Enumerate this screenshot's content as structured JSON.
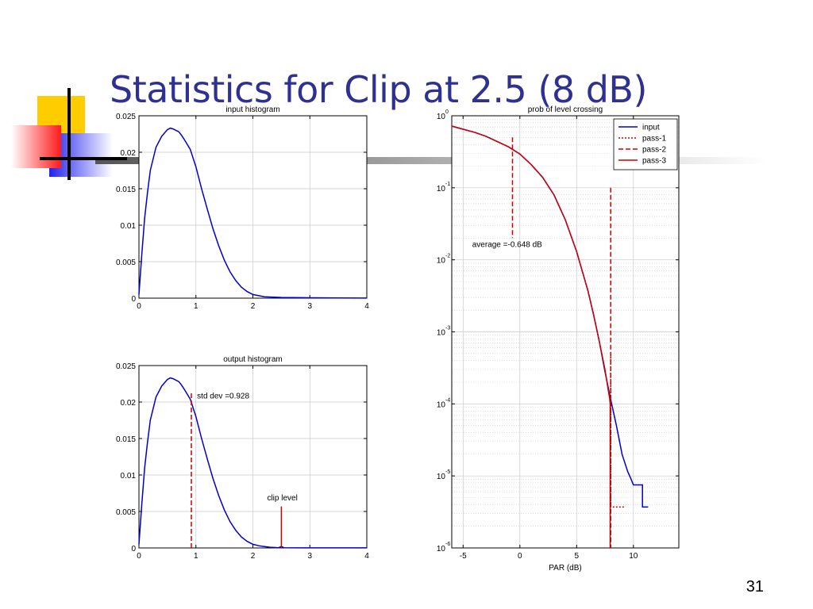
{
  "slide": {
    "title": "Statistics for Clip at 2.5 (8 dB)",
    "page_number": "31"
  },
  "chart_data": [
    {
      "type": "line",
      "title": "input histogram",
      "xlabel": "",
      "ylabel": "",
      "xlim": [
        0,
        4
      ],
      "ylim": [
        0,
        0.025
      ],
      "xticks": [
        0,
        1,
        2,
        3,
        4
      ],
      "yticks": [
        0,
        0.005,
        0.01,
        0.015,
        0.02,
        0.025
      ],
      "xtick_labels": [
        "0",
        "1",
        "2",
        "3",
        "4"
      ],
      "ytick_labels": [
        "0",
        "0.005",
        "0.01",
        "0.015",
        "0.02",
        "0.025"
      ],
      "grid": true,
      "series": [
        {
          "color": "#0000CC",
          "style": "solid",
          "x": [
            0,
            0.05,
            0.1,
            0.15,
            0.2,
            0.3,
            0.4,
            0.5,
            0.55,
            0.6,
            0.65,
            0.7,
            0.75,
            0.8,
            0.9,
            1.0,
            1.1,
            1.2,
            1.3,
            1.4,
            1.5,
            1.6,
            1.7,
            1.8,
            1.9,
            2.0,
            2.2,
            2.5,
            3.0,
            3.5,
            4.0
          ],
          "y": [
            0.0005,
            0.006,
            0.011,
            0.0145,
            0.0175,
            0.0207,
            0.0222,
            0.0231,
            0.0233,
            0.0232,
            0.023,
            0.0228,
            0.0223,
            0.0217,
            0.0204,
            0.018,
            0.015,
            0.0122,
            0.0095,
            0.0072,
            0.0052,
            0.0036,
            0.0024,
            0.0015,
            0.0009,
            0.0005,
            0.0002,
            0.0001,
            5e-05,
            2e-05,
            1e-05
          ]
        }
      ],
      "annotations": []
    },
    {
      "type": "line",
      "title": "output histogram",
      "xlabel": "",
      "ylabel": "",
      "xlim": [
        0,
        4
      ],
      "ylim": [
        0,
        0.025
      ],
      "xticks": [
        0,
        1,
        2,
        3,
        4
      ],
      "yticks": [
        0,
        0.005,
        0.01,
        0.015,
        0.02,
        0.025
      ],
      "xtick_labels": [
        "0",
        "1",
        "2",
        "3",
        "4"
      ],
      "ytick_labels": [
        "0",
        "0.005",
        "0.01",
        "0.015",
        "0.02",
        "0.025"
      ],
      "grid": true,
      "series": [
        {
          "color": "#0000CC",
          "style": "solid",
          "x": [
            0,
            0.05,
            0.1,
            0.15,
            0.2,
            0.3,
            0.4,
            0.5,
            0.55,
            0.6,
            0.65,
            0.7,
            0.75,
            0.8,
            0.9,
            1.0,
            1.1,
            1.2,
            1.3,
            1.4,
            1.5,
            1.6,
            1.7,
            1.8,
            1.9,
            2.0,
            2.1,
            2.2,
            2.3,
            2.4,
            2.45,
            2.5,
            2.55,
            3.0,
            4.0
          ],
          "y": [
            0.0005,
            0.006,
            0.011,
            0.0145,
            0.0175,
            0.0207,
            0.0222,
            0.0231,
            0.0233,
            0.0232,
            0.023,
            0.0228,
            0.0223,
            0.0217,
            0.0204,
            0.018,
            0.015,
            0.0122,
            0.0095,
            0.0072,
            0.0052,
            0.0036,
            0.0024,
            0.0015,
            0.0009,
            0.0005,
            0.0003,
            0.0002,
            0.0001,
            5e-05,
            3e-05,
            0.0002,
            2e-05,
            1e-05,
            1e-05
          ]
        },
        {
          "color": "#CC0000",
          "style": "dashed",
          "x": [
            0.92,
            0.92
          ],
          "y": [
            0,
            0.0215
          ]
        },
        {
          "color": "#CC0000",
          "style": "solid",
          "x": [
            2.5,
            2.5
          ],
          "y": [
            0,
            0.0057
          ]
        }
      ],
      "annotations": [
        {
          "text": "std dev =0.928",
          "x": 1.02,
          "y": 0.0205
        },
        {
          "text": "clip level",
          "x": 2.25,
          "y": 0.0065
        }
      ]
    },
    {
      "type": "line",
      "title": "prob of level crossing",
      "xlabel": "PAR (dB)",
      "ylabel": "",
      "xlim": [
        -6,
        14
      ],
      "ylim": [
        1e-06,
        1
      ],
      "yscale": "log",
      "xticks": [
        -5,
        0,
        5,
        10
      ],
      "xtick_labels": [
        "-5",
        "0",
        "5",
        "10"
      ],
      "yticks": [
        1,
        0.1,
        0.01,
        0.001,
        0.0001,
        1e-05,
        1e-06
      ],
      "ytick_labels": [
        {
          "base": "10",
          "exp": "0"
        },
        {
          "base": "10",
          "exp": "-1"
        },
        {
          "base": "10",
          "exp": "-2"
        },
        {
          "base": "10",
          "exp": "-3"
        },
        {
          "base": "10",
          "exp": "-4"
        },
        {
          "base": "10",
          "exp": "-5"
        },
        {
          "base": "10",
          "exp": "-6"
        }
      ],
      "grid": true,
      "legend": {
        "position": "top-right"
      },
      "series": [
        {
          "name": "input",
          "color": "#0000CC",
          "style": "solid",
          "x": [
            -6,
            -5,
            -4,
            -3,
            -2,
            -1,
            0,
            1,
            2,
            3,
            4,
            5,
            6,
            6.5,
            7,
            7.5,
            8,
            8.5,
            9,
            9.5,
            9.8,
            10,
            10.8,
            10.8,
            11.3
          ],
          "y": [
            0.72,
            0.65,
            0.59,
            0.52,
            0.44,
            0.37,
            0.295,
            0.21,
            0.14,
            0.08,
            0.036,
            0.013,
            0.0037,
            0.0017,
            0.00073,
            0.00028,
            0.000115,
            5e-05,
            2e-05,
            1.15e-05,
            9e-06,
            7.5e-06,
            7.5e-06,
            3.7e-06,
            3.7e-06
          ]
        },
        {
          "name": "pass-1",
          "color": "#CC0000",
          "style": "dotted",
          "x": [
            8.0,
            8.0,
            9.2
          ],
          "y": [
            0.00045,
            3.7e-06,
            3.7e-06
          ]
        },
        {
          "name": "pass-2",
          "color": "#CC0000",
          "style": "dashed",
          "x": [
            -0.65,
            -0.65,
            null,
            8.0,
            8.0
          ],
          "y": [
            0.5,
            0.02,
            null,
            0.1,
            1e-06
          ]
        },
        {
          "name": "pass-3",
          "color": "#CC0000",
          "style": "solid",
          "x": [
            -6,
            -5,
            -4,
            -3,
            -2,
            -1,
            0,
            1,
            2,
            3,
            4,
            5,
            6,
            6.5,
            7,
            7.5,
            7.8,
            7.9,
            7.95,
            7.95
          ],
          "y": [
            0.72,
            0.65,
            0.59,
            0.52,
            0.44,
            0.37,
            0.295,
            0.21,
            0.14,
            0.08,
            0.036,
            0.013,
            0.0037,
            0.0017,
            0.00073,
            0.0003,
            0.00015,
            0.00012,
            0.0001,
            1e-06
          ]
        }
      ],
      "annotations": [
        {
          "text": "average =-0.648 dB",
          "x": -4.2,
          "y": 0.015
        }
      ]
    }
  ]
}
